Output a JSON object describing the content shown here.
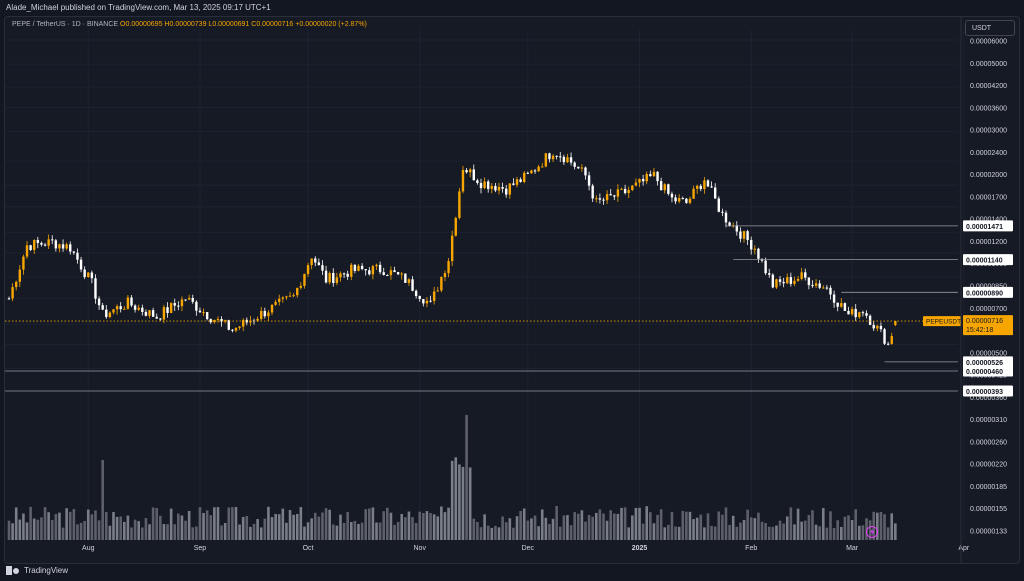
{
  "header": {
    "published": "Alade_Michael published on TradingView.com, Mar 13, 2025 09:17 UTC+1"
  },
  "legend": {
    "symbol": "PEPE / TetherUS · 1D · BINANCE",
    "open": "O0.00000695",
    "high": "H0.00000739",
    "low": "L0.00000691",
    "close": "C0.00000716",
    "change": "+0.00000020 (+2.87%)"
  },
  "currency_button": "USDT",
  "brand": "TradingView",
  "colors": {
    "up": "#f7a600",
    "down": "#ffffff",
    "background": "#161a25",
    "grid": "#1e2230",
    "price_tag": "#f7a600"
  },
  "chart_data": {
    "type": "candlestick",
    "scale": "log",
    "y_axis_ticks": [
      "0.00006000",
      "0.00005000",
      "0.00004200",
      "0.00003600",
      "0.00003000",
      "0.00002400",
      "0.00002000",
      "0.00001700",
      "0.00001400",
      "0.00001200",
      "0.00001000",
      "0.00000850",
      "0.00000700",
      "0.00000600",
      "0.00000500",
      "0.00000420",
      "0.00000360",
      "0.00000310",
      "0.00000260",
      "0.00000220",
      "0.00000185",
      "0.00000155",
      "0.00000133"
    ],
    "x_axis_ticks": [
      "Aug",
      "Sep",
      "Oct",
      "Nov",
      "Dec",
      "2025",
      "Feb",
      "Mar",
      "Apr"
    ],
    "horizontal_levels": [
      "0.00001471",
      "0.00001140",
      "0.00000890",
      "0.00000526",
      "0.00000460",
      "0.00000393"
    ],
    "last_price": {
      "symbol": "PEPEUSDT",
      "price": "0.00000716",
      "countdown": "15:42:18"
    },
    "volume": true,
    "anchors": [
      {
        "date": "2024-07-10",
        "close": 8.5e-06
      },
      {
        "date": "2024-07-15",
        "close": 1.27e-05
      },
      {
        "date": "2024-07-22",
        "close": 1.3e-05
      },
      {
        "date": "2024-07-27",
        "close": 1.25e-05
      },
      {
        "date": "2024-08-02",
        "close": 9.5e-06
      },
      {
        "date": "2024-08-05",
        "close": 7.5e-06
      },
      {
        "date": "2024-08-12",
        "close": 8.2e-06
      },
      {
        "date": "2024-08-20",
        "close": 7.4e-06
      },
      {
        "date": "2024-08-28",
        "close": 8.5e-06
      },
      {
        "date": "2024-09-04",
        "close": 7.4e-06
      },
      {
        "date": "2024-09-10",
        "close": 6.7e-06
      },
      {
        "date": "2024-09-20",
        "close": 7.8e-06
      },
      {
        "date": "2024-09-27",
        "close": 8.6e-06
      },
      {
        "date": "2024-10-02",
        "close": 1.18e-05
      },
      {
        "date": "2024-10-06",
        "close": 9.8e-06
      },
      {
        "date": "2024-10-13",
        "close": 1.05e-05
      },
      {
        "date": "2024-10-22",
        "close": 1.06e-05
      },
      {
        "date": "2024-10-28",
        "close": 9.8e-06
      },
      {
        "date": "2024-11-04",
        "close": 8.1e-06
      },
      {
        "date": "2024-11-09",
        "close": 1.15e-05
      },
      {
        "date": "2024-11-13",
        "close": 2.3e-05
      },
      {
        "date": "2024-11-18",
        "close": 2.05e-05
      },
      {
        "date": "2024-11-25",
        "close": 1.95e-05
      },
      {
        "date": "2024-12-01",
        "close": 2.15e-05
      },
      {
        "date": "2024-12-08",
        "close": 2.6e-05
      },
      {
        "date": "2024-12-12",
        "close": 2.45e-05
      },
      {
        "date": "2024-12-17",
        "close": 2.15e-05
      },
      {
        "date": "2024-12-20",
        "close": 1.75e-05
      },
      {
        "date": "2024-12-28",
        "close": 1.9e-05
      },
      {
        "date": "2025-01-05",
        "close": 2.15e-05
      },
      {
        "date": "2025-01-10",
        "close": 1.8e-05
      },
      {
        "date": "2025-01-14",
        "close": 1.75e-05
      },
      {
        "date": "2025-01-19",
        "close": 2.1e-05
      },
      {
        "date": "2025-01-24",
        "close": 1.6e-05
      },
      {
        "date": "2025-02-02",
        "close": 1.25e-05
      },
      {
        "date": "2025-02-07",
        "close": 9.4e-06
      },
      {
        "date": "2025-02-15",
        "close": 1e-05
      },
      {
        "date": "2025-02-22",
        "close": 9.2e-06
      },
      {
        "date": "2025-02-28",
        "close": 7.5e-06
      },
      {
        "date": "2025-03-04",
        "close": 7.8e-06
      },
      {
        "date": "2025-03-10",
        "close": 6.3e-06
      },
      {
        "date": "2025-03-11",
        "close": 6e-06
      },
      {
        "date": "2025-03-13",
        "close": 7.1e-06
      }
    ]
  }
}
